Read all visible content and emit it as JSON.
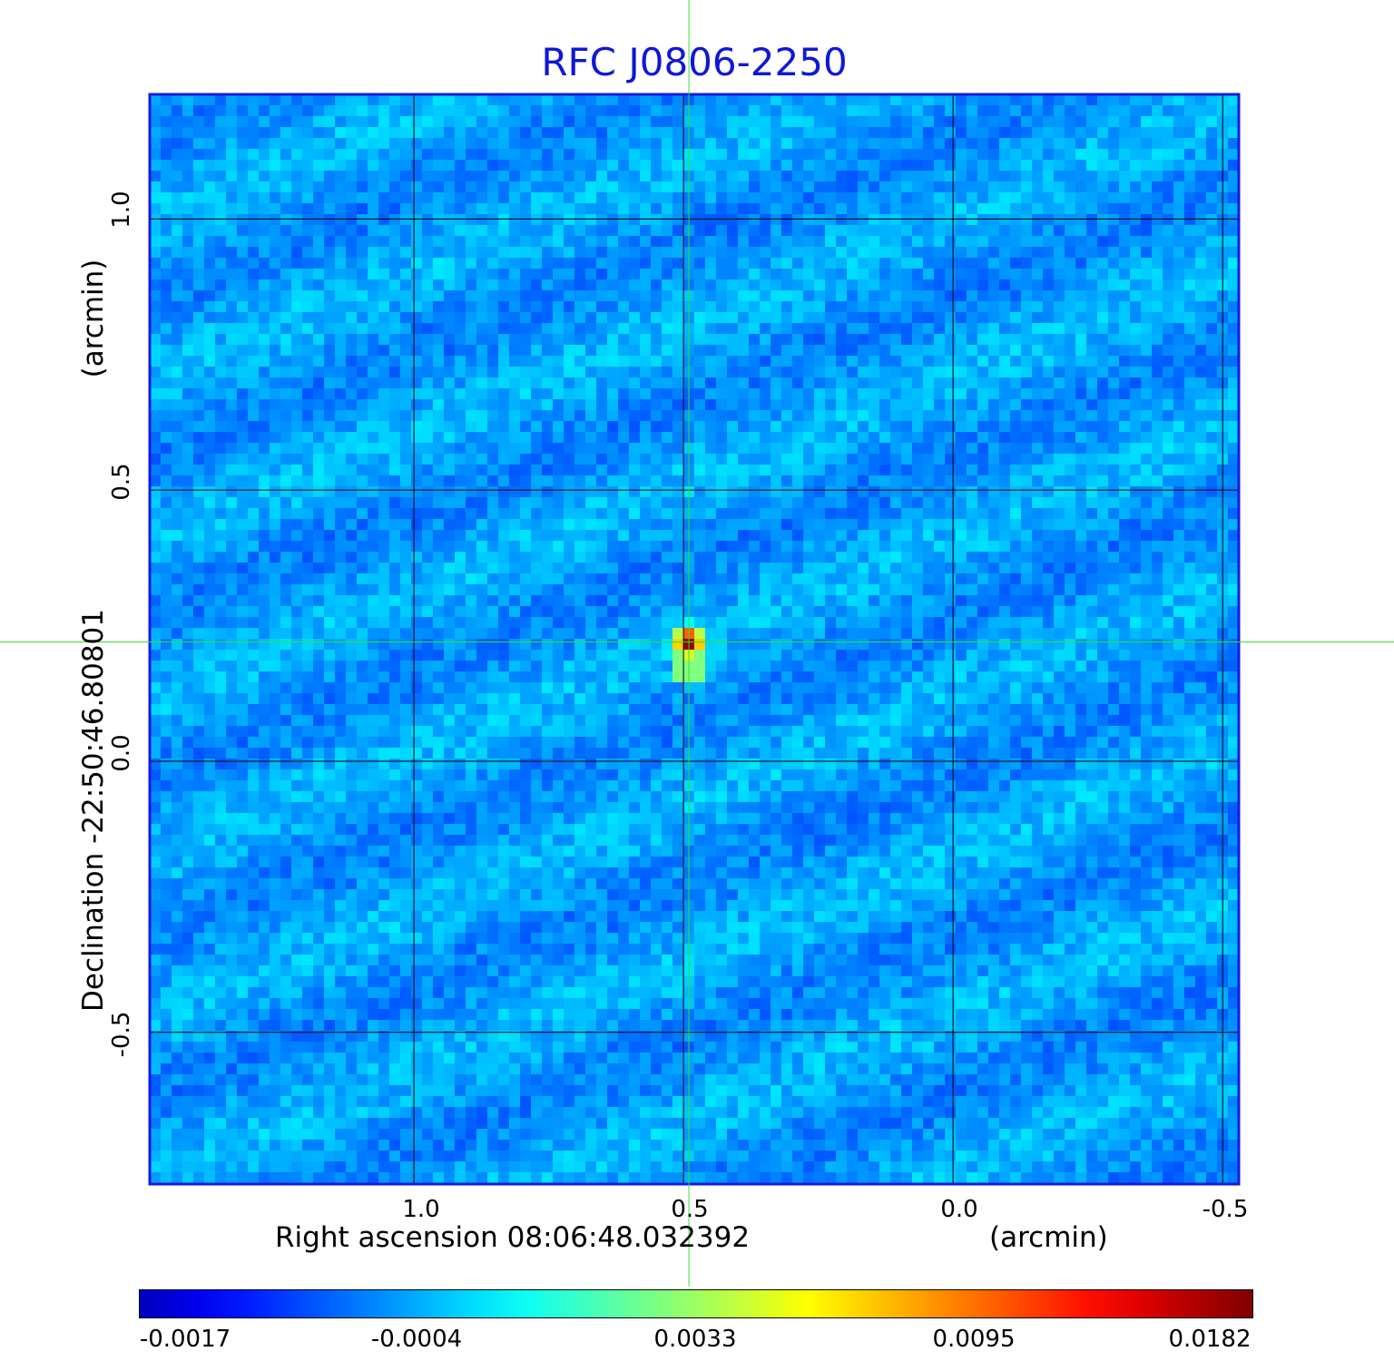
{
  "chart_data": {
    "type": "heatmap",
    "title": "RFC J0806-2250",
    "xlabel": "Right ascension  08:06:48.032392",
    "xunit": "(arcmin)",
    "ylabel": "Declination  -22:50:46.80801",
    "yunit": "(arcmin)",
    "x_ticks": [
      "1.0",
      "0.5",
      "0.0",
      "-0.5"
    ],
    "y_ticks": [
      "1.0",
      "0.5",
      "0.0",
      "-0.5"
    ],
    "xlim": [
      1.49,
      -0.53
    ],
    "ylim": [
      -0.78,
      1.23
    ],
    "grid": true,
    "colormap": "jet",
    "colorbar_ticks": [
      "-0.0017",
      "-0.0004",
      "0.0033",
      "0.0095",
      "0.0182"
    ],
    "peak": {
      "x": 0.49,
      "y": 0.22,
      "value": 0.0182
    },
    "crosshair": {
      "x": 0.49,
      "y": 0.22,
      "color": "#33e033"
    },
    "frame_color": "#1a1adb",
    "title_color": "#0f18d6"
  }
}
